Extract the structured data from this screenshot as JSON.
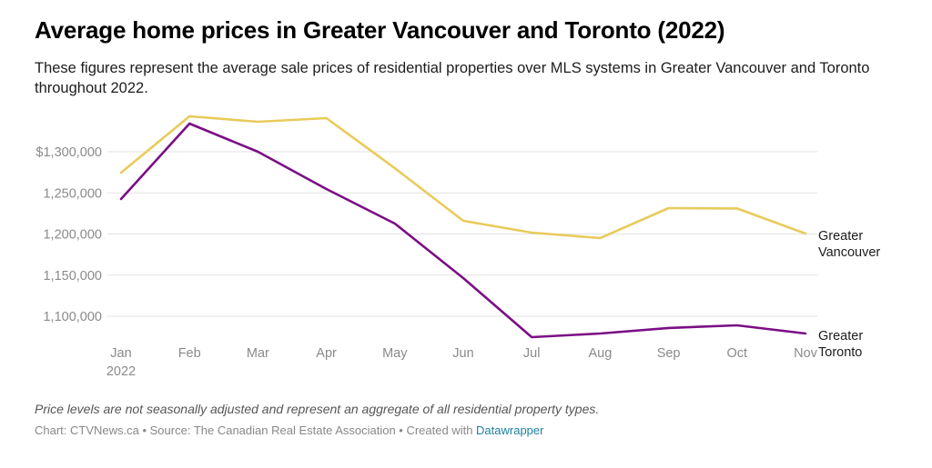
{
  "header": {
    "title": "Average home prices in Greater Vancouver and Toronto (2022)",
    "subtitle": "These figures represent the average sale prices of residential properties over MLS systems in Greater Vancouver and Toronto throughout 2022."
  },
  "footer": {
    "note": "Price levels are not seasonally adjusted and represent an aggregate of all residential property types.",
    "credit_prefix": "Chart: CTVNews.ca • Source: The Canadian Real Estate Association • Created with ",
    "credit_link": "Datawrapper"
  },
  "colors": {
    "vancouver": "#e8cb5a",
    "toronto": "#7b0e85",
    "grid": "#e2e2e2",
    "axis_text": "#8a8a8a",
    "link": "#1d81a2"
  },
  "chart_data": {
    "type": "line",
    "title": "Average home prices in Greater Vancouver and Toronto (2022)",
    "xlabel": "",
    "ylabel": "",
    "x": [
      "Jan",
      "Feb",
      "Mar",
      "Apr",
      "May",
      "Jun",
      "Jul",
      "Aug",
      "Sep",
      "Oct",
      "Nov"
    ],
    "x_tick_labels": [
      "Jan\n2022",
      "Feb",
      "Mar",
      "Apr",
      "May",
      "Jun",
      "Jul",
      "Aug",
      "Sep",
      "Oct",
      "Nov"
    ],
    "y_ticks": [
      1100000,
      1150000,
      1200000,
      1250000,
      1300000
    ],
    "y_tick_labels": [
      "1,100,000",
      "1,150,000",
      "1,200,000",
      "1,250,000",
      "$1,300,000"
    ],
    "ylim": [
      1075000,
      1345000
    ],
    "grid": true,
    "legend": "direct labels at right end of lines",
    "series": [
      {
        "name": "Greater Vancouver",
        "label_lines": [
          "Greater",
          "Vancouver"
        ],
        "color": "#e8cb5a",
        "values": [
          1274600,
          1343100,
          1336500,
          1340900,
          1280000,
          1216000,
          1201700,
          1195000,
          1231500,
          1231000,
          1200500
        ]
      },
      {
        "name": "Greater Toronto",
        "label_lines": [
          "Greater",
          "Toronto"
        ],
        "color": "#7b0e85",
        "values": [
          1242500,
          1334300,
          1300000,
          1254700,
          1212700,
          1146400,
          1074600,
          1079000,
          1085700,
          1089000,
          1079000
        ]
      }
    ]
  }
}
